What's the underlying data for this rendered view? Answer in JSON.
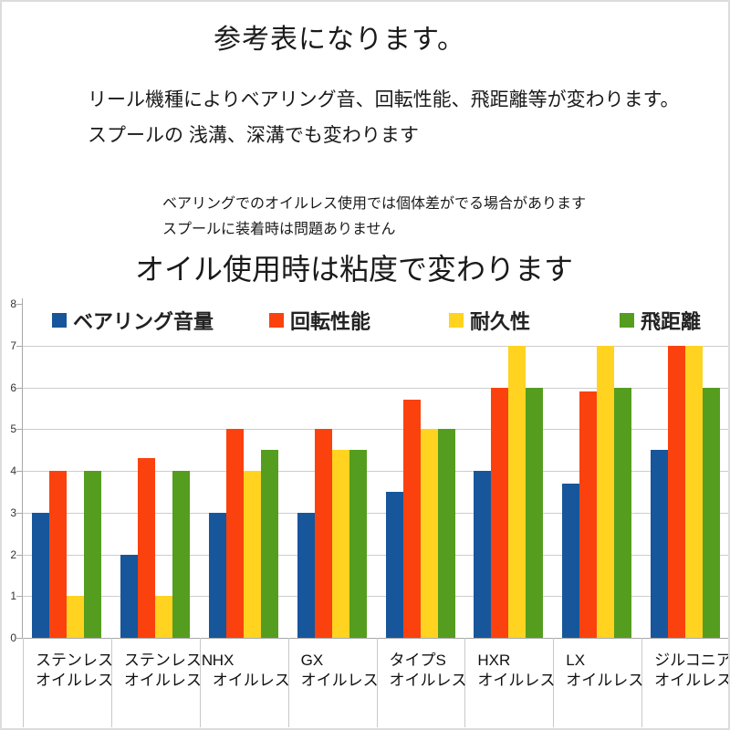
{
  "page": {
    "title": "参考表になります。",
    "intro_line1": "リール機種によりベアリング音、回転性能、飛距離等が変わります。",
    "intro_line2": "スプールの 浅溝、深溝でも変わります",
    "note_line1": "ベアリングでのオイルレス使用では個体差がでる場合があります",
    "note_line2": "スプールに装着時は問題ありません",
    "subtitle": "オイル使用時は粘度で変わります"
  },
  "chart_data": {
    "type": "bar",
    "title": "",
    "xlabel": "",
    "ylabel": "",
    "ylim": [
      0,
      8
    ],
    "yticks": [
      0,
      1,
      2,
      3,
      4,
      5,
      6,
      7,
      8
    ],
    "grid": true,
    "legend_position": "top-inside",
    "categories": [
      "ステンレス",
      "ステンレスN",
      "HX",
      "GX",
      "タイプS",
      "HXR",
      "LX",
      "ジルコニア"
    ],
    "category_sublabel": "オイルレス",
    "series": [
      {
        "name": "ベアリング音量",
        "color": "#17569B",
        "values": [
          3,
          2,
          3,
          3,
          3.5,
          4,
          3.7,
          4.5
        ]
      },
      {
        "name": "回転性能",
        "color": "#FB420E",
        "values": [
          4,
          4.3,
          5,
          5,
          5.7,
          6,
          5.9,
          7
        ]
      },
      {
        "name": "耐久性",
        "color": "#FFD320",
        "values": [
          1,
          1,
          4,
          4.5,
          5,
          7,
          7,
          7
        ]
      },
      {
        "name": "飛距離",
        "color": "#559D1F",
        "values": [
          4,
          4,
          4.5,
          4.5,
          5,
          6,
          6,
          6
        ]
      }
    ]
  }
}
